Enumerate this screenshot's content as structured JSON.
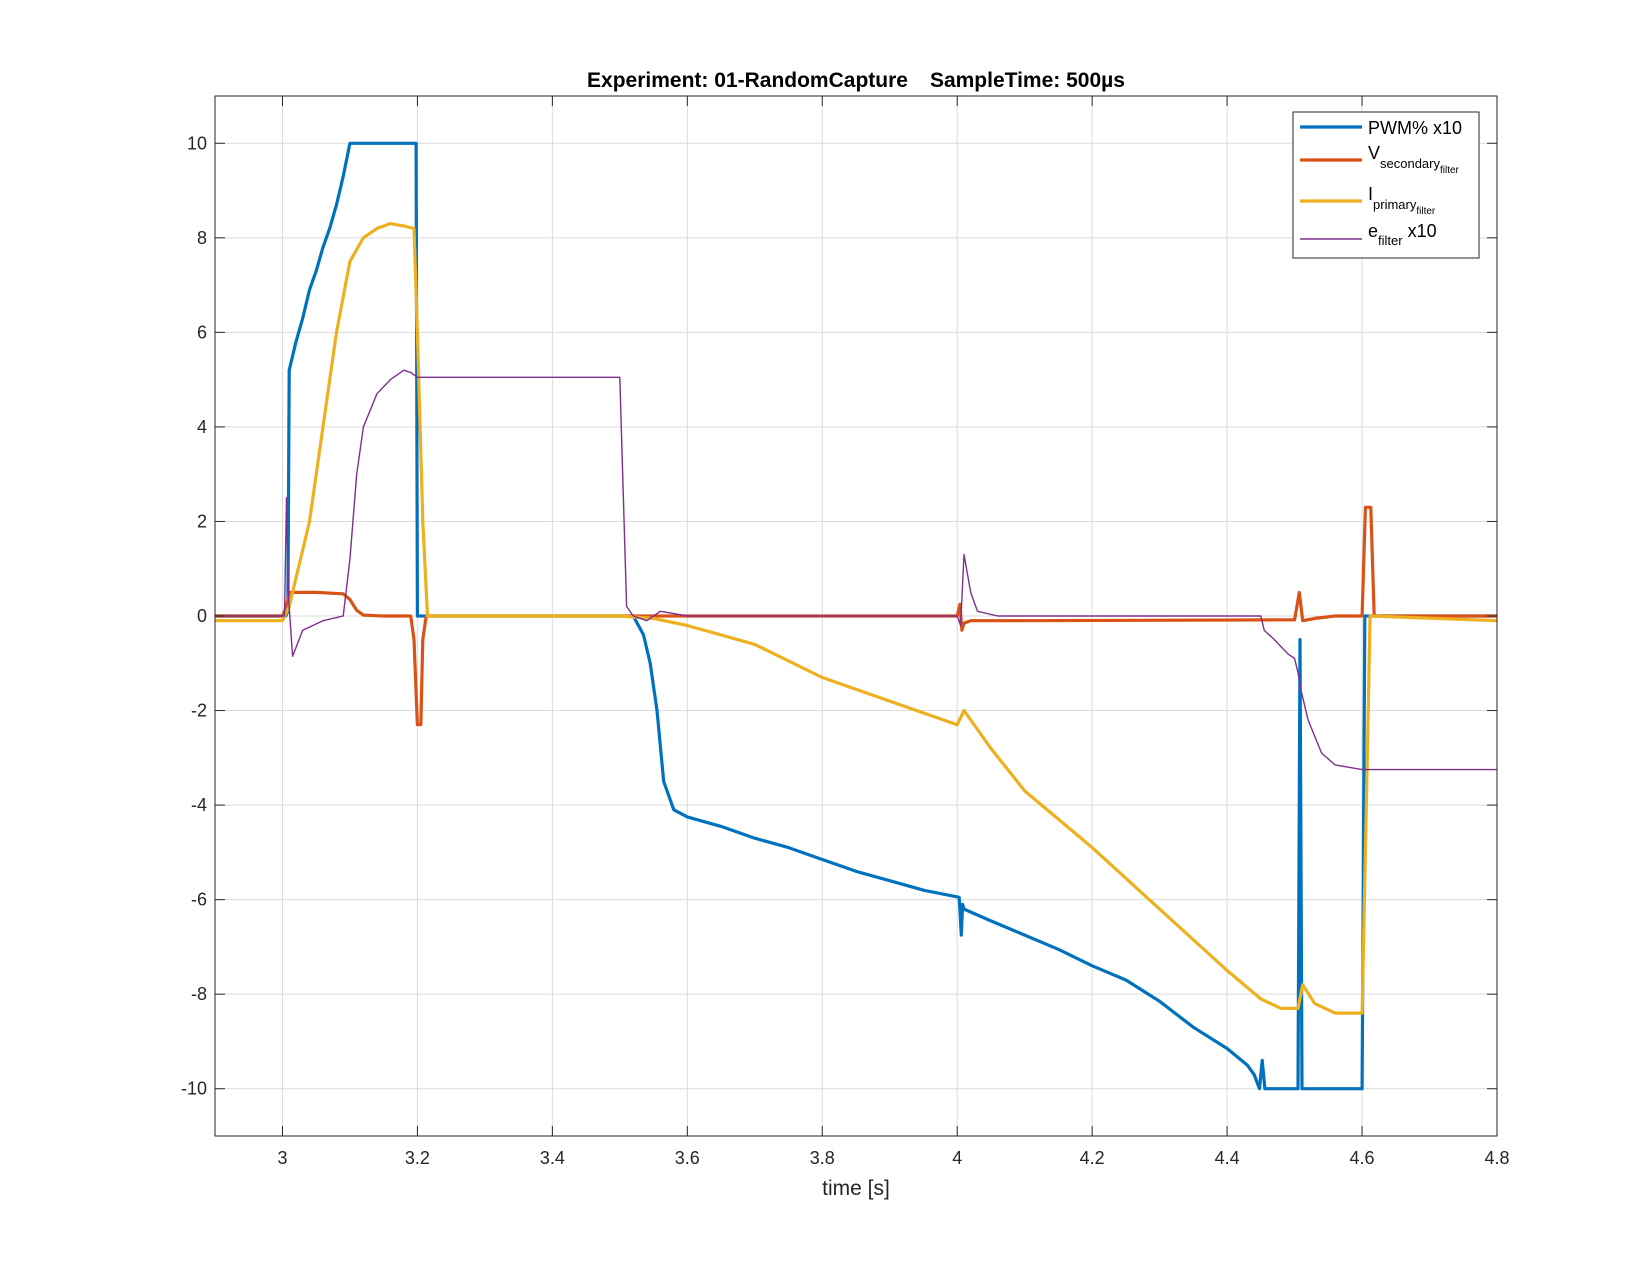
{
  "chart_data": {
    "type": "line",
    "title_experiment": "Experiment: 01-RandomCapture",
    "title_sample": "SampleTime: 500µs",
    "xlabel": "time [s]",
    "ylabel": "",
    "xlim": [
      2.9,
      4.8
    ],
    "ylim": [
      -11,
      11
    ],
    "x_ticks": [
      3,
      3.2,
      3.4,
      3.6,
      3.8,
      4,
      4.2,
      4.4,
      4.6,
      4.8
    ],
    "x_tick_labels": [
      "3",
      "3.2",
      "3.4",
      "3.6",
      "3.8",
      "4",
      "4.2",
      "4.4",
      "4.6",
      "4.8"
    ],
    "y_ticks": [
      -10,
      -8,
      -6,
      -4,
      -2,
      0,
      2,
      4,
      6,
      8,
      10
    ],
    "y_tick_labels": [
      "-10",
      "-8",
      "-6",
      "-4",
      "-2",
      "0",
      "2",
      "4",
      "6",
      "8",
      "10"
    ],
    "grid": true,
    "legend_position": "top-right",
    "legend": {
      "pwm": "PWM% x10",
      "v_main": "V",
      "v_sub": "secondary",
      "v_subsub": "filter",
      "i_main": "I",
      "i_sub": "primary",
      "i_subsub": "filter",
      "e_main": "e",
      "e_sub": "filter",
      "e_suffix": " x10"
    },
    "series": [
      {
        "key": "pwm",
        "color": "#0072BD",
        "width": 3.2,
        "points": [
          [
            2.9,
            0
          ],
          [
            3.005,
            0
          ],
          [
            3.008,
            0.1
          ],
          [
            3.01,
            5.2
          ],
          [
            3.02,
            5.8
          ],
          [
            3.03,
            6.3
          ],
          [
            3.04,
            6.9
          ],
          [
            3.05,
            7.3
          ],
          [
            3.06,
            7.8
          ],
          [
            3.07,
            8.2
          ],
          [
            3.08,
            8.7
          ],
          [
            3.09,
            9.3
          ],
          [
            3.1,
            10
          ],
          [
            3.198,
            10
          ],
          [
            3.2,
            0
          ],
          [
            3.52,
            0
          ],
          [
            3.535,
            -0.4
          ],
          [
            3.545,
            -1.0
          ],
          [
            3.555,
            -2.0
          ],
          [
            3.565,
            -3.5
          ],
          [
            3.58,
            -4.1
          ],
          [
            3.6,
            -4.25
          ],
          [
            3.65,
            -4.45
          ],
          [
            3.7,
            -4.7
          ],
          [
            3.75,
            -4.9
          ],
          [
            3.8,
            -5.15
          ],
          [
            3.85,
            -5.4
          ],
          [
            3.9,
            -5.6
          ],
          [
            3.95,
            -5.8
          ],
          [
            4.003,
            -5.95
          ],
          [
            4.006,
            -6.75
          ],
          [
            4.008,
            -6.1
          ],
          [
            4.01,
            -6.2
          ],
          [
            4.05,
            -6.45
          ],
          [
            4.1,
            -6.75
          ],
          [
            4.15,
            -7.05
          ],
          [
            4.2,
            -7.4
          ],
          [
            4.25,
            -7.7
          ],
          [
            4.3,
            -8.15
          ],
          [
            4.35,
            -8.7
          ],
          [
            4.4,
            -9.15
          ],
          [
            4.43,
            -9.5
          ],
          [
            4.44,
            -9.7
          ],
          [
            4.448,
            -10
          ],
          [
            4.452,
            -9.4
          ],
          [
            4.456,
            -10
          ],
          [
            4.505,
            -10
          ],
          [
            4.508,
            -0.5
          ],
          [
            4.511,
            -10
          ],
          [
            4.6,
            -10
          ],
          [
            4.604,
            0
          ],
          [
            4.8,
            0
          ]
        ]
      },
      {
        "key": "vsec",
        "color": "#D95319",
        "width": 3.2,
        "points": [
          [
            2.9,
            0
          ],
          [
            3.0,
            0
          ],
          [
            3.006,
            0.2
          ],
          [
            3.01,
            0.5
          ],
          [
            3.05,
            0.5
          ],
          [
            3.09,
            0.47
          ],
          [
            3.1,
            0.35
          ],
          [
            3.11,
            0.12
          ],
          [
            3.12,
            0.02
          ],
          [
            3.15,
            0
          ],
          [
            3.19,
            0
          ],
          [
            3.195,
            -0.5
          ],
          [
            3.2,
            -2.3
          ],
          [
            3.205,
            -2.3
          ],
          [
            3.208,
            -0.5
          ],
          [
            3.213,
            0
          ],
          [
            3.5,
            0
          ],
          [
            4.0,
            0
          ],
          [
            4.004,
            0.25
          ],
          [
            4.007,
            -0.3
          ],
          [
            4.01,
            -0.15
          ],
          [
            4.02,
            -0.1
          ],
          [
            4.1,
            -0.1
          ],
          [
            4.5,
            -0.08
          ],
          [
            4.507,
            0.5
          ],
          [
            4.512,
            -0.1
          ],
          [
            4.53,
            -0.05
          ],
          [
            4.56,
            0
          ],
          [
            4.6,
            0
          ],
          [
            4.605,
            2.3
          ],
          [
            4.613,
            2.3
          ],
          [
            4.618,
            0
          ],
          [
            4.8,
            0
          ]
        ]
      },
      {
        "key": "iprim",
        "color": "#EDB120",
        "width": 3.2,
        "points": [
          [
            2.9,
            -0.1
          ],
          [
            3.0,
            -0.1
          ],
          [
            3.01,
            0.2
          ],
          [
            3.04,
            2.0
          ],
          [
            3.06,
            4.0
          ],
          [
            3.08,
            6.0
          ],
          [
            3.1,
            7.5
          ],
          [
            3.12,
            8.0
          ],
          [
            3.14,
            8.2
          ],
          [
            3.16,
            8.3
          ],
          [
            3.18,
            8.25
          ],
          [
            3.195,
            8.2
          ],
          [
            3.2,
            6.0
          ],
          [
            3.208,
            2.0
          ],
          [
            3.215,
            0
          ],
          [
            3.5,
            0
          ],
          [
            3.55,
            -0.05
          ],
          [
            3.6,
            -0.2
          ],
          [
            3.7,
            -0.6
          ],
          [
            3.8,
            -1.3
          ],
          [
            3.9,
            -1.8
          ],
          [
            4.0,
            -2.3
          ],
          [
            4.01,
            -2.0
          ],
          [
            4.05,
            -2.8
          ],
          [
            4.1,
            -3.7
          ],
          [
            4.2,
            -4.9
          ],
          [
            4.3,
            -6.2
          ],
          [
            4.4,
            -7.5
          ],
          [
            4.45,
            -8.1
          ],
          [
            4.48,
            -8.3
          ],
          [
            4.505,
            -8.3
          ],
          [
            4.512,
            -7.8
          ],
          [
            4.53,
            -8.2
          ],
          [
            4.56,
            -8.4
          ],
          [
            4.6,
            -8.4
          ],
          [
            4.605,
            -5.0
          ],
          [
            4.612,
            0
          ],
          [
            4.8,
            -0.1
          ]
        ]
      },
      {
        "key": "efilt",
        "color": "#7E2F8E",
        "width": 1.4,
        "points": [
          [
            2.9,
            0
          ],
          [
            3.003,
            0
          ],
          [
            3.006,
            2.5
          ],
          [
            3.009,
            0.4
          ],
          [
            3.015,
            -0.85
          ],
          [
            3.03,
            -0.3
          ],
          [
            3.06,
            -0.1
          ],
          [
            3.09,
            0
          ],
          [
            3.1,
            1.2
          ],
          [
            3.11,
            3.0
          ],
          [
            3.12,
            4.0
          ],
          [
            3.14,
            4.7
          ],
          [
            3.16,
            5.0
          ],
          [
            3.18,
            5.2
          ],
          [
            3.19,
            5.15
          ],
          [
            3.2,
            5.05
          ],
          [
            3.3,
            5.05
          ],
          [
            3.4,
            5.05
          ],
          [
            3.5,
            5.05
          ],
          [
            3.51,
            0.2
          ],
          [
            3.52,
            0
          ],
          [
            3.54,
            -0.1
          ],
          [
            3.56,
            0.1
          ],
          [
            3.58,
            0.05
          ],
          [
            3.6,
            0
          ],
          [
            4.0,
            0
          ],
          [
            4.005,
            -0.2
          ],
          [
            4.01,
            1.3
          ],
          [
            4.02,
            0.5
          ],
          [
            4.03,
            0.1
          ],
          [
            4.06,
            0
          ],
          [
            4.45,
            0
          ],
          [
            4.455,
            -0.3
          ],
          [
            4.47,
            -0.5
          ],
          [
            4.49,
            -0.8
          ],
          [
            4.5,
            -0.9
          ],
          [
            4.505,
            -1.2
          ],
          [
            4.51,
            -1.6
          ],
          [
            4.52,
            -2.2
          ],
          [
            4.54,
            -2.9
          ],
          [
            4.56,
            -3.15
          ],
          [
            4.6,
            -3.25
          ],
          [
            4.8,
            -3.25
          ]
        ]
      }
    ]
  }
}
